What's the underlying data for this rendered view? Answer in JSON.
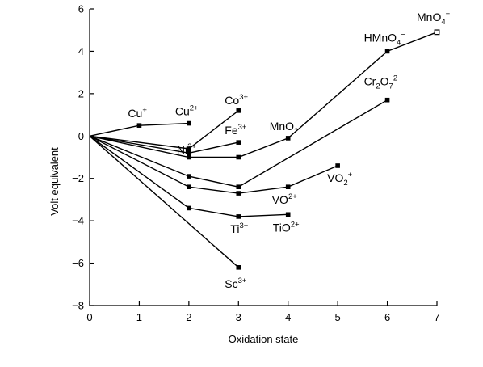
{
  "chart_data": {
    "type": "line",
    "xlabel": "Oxidation state",
    "ylabel": "Volt equivalent",
    "xlim": [
      0,
      7
    ],
    "ylim": [
      -8,
      6
    ],
    "x_ticks": [
      0,
      1,
      2,
      3,
      4,
      5,
      6,
      7
    ],
    "y_ticks": [
      -8,
      -6,
      -4,
      -2,
      0,
      2,
      4,
      6
    ],
    "series": [
      {
        "points": [
          [
            0,
            0
          ],
          [
            1,
            0.5
          ],
          [
            2,
            0.6
          ]
        ]
      },
      {
        "points": [
          [
            0,
            0
          ],
          [
            2,
            -0.6
          ],
          [
            3,
            1.2
          ]
        ]
      },
      {
        "points": [
          [
            0,
            0
          ],
          [
            2,
            -0.8
          ],
          [
            3,
            -0.3
          ]
        ]
      },
      {
        "points": [
          [
            0,
            0
          ],
          [
            2,
            -1.0
          ],
          [
            3,
            -1.0
          ],
          [
            4,
            -0.1
          ],
          [
            6,
            4.0
          ],
          [
            7,
            4.9
          ]
        ]
      },
      {
        "points": [
          [
            0,
            0
          ],
          [
            2,
            -1.9
          ],
          [
            3,
            -2.4
          ],
          [
            6,
            1.7
          ]
        ]
      },
      {
        "points": [
          [
            0,
            0
          ],
          [
            2,
            -2.4
          ],
          [
            3,
            -2.7
          ],
          [
            4,
            -2.4
          ],
          [
            5,
            -1.4
          ]
        ]
      },
      {
        "points": [
          [
            0,
            0
          ],
          [
            2,
            -3.4
          ],
          [
            3,
            -3.8
          ],
          [
            4,
            -3.7
          ]
        ]
      },
      {
        "points": [
          [
            0,
            0
          ],
          [
            3,
            -6.2
          ]
        ]
      }
    ],
    "open_markers": [
      [
        7,
        4.9
      ]
    ],
    "annotations": [
      {
        "base": "Cu",
        "sup": "+",
        "sub": "",
        "x": 1,
        "y": 0.5
      },
      {
        "base": "Cu",
        "sup": "2+",
        "sub": "",
        "x": 2,
        "y": 0.6
      },
      {
        "base": "Co",
        "sup": "3+",
        "sub": "",
        "x": 3,
        "y": 1.2
      },
      {
        "base": "Ni",
        "sup": "2+",
        "sub": "",
        "x": 2,
        "y": -0.6
      },
      {
        "base": "Fe",
        "sup": "3+",
        "sub": "",
        "x": 3,
        "y": -0.3
      },
      {
        "base": "MnO",
        "sup": "",
        "sub": "2",
        "x": 4,
        "y": -0.1
      },
      {
        "base": "HMnO",
        "sup": "−",
        "sub": "4",
        "x": 6,
        "y": 4.0
      },
      {
        "base": "MnO",
        "sup": "−",
        "sub": "4",
        "x": 7,
        "y": 4.9
      },
      {
        "base": "Cr",
        "sup": "2−",
        "sub": "2",
        "mid": "O",
        "sub2": "7",
        "x": 6,
        "y": 1.7
      },
      {
        "base": "VO",
        "sup": "+",
        "sub": "2",
        "x": 5,
        "y": -1.4
      },
      {
        "base": "VO",
        "sup": "2+",
        "sub": "",
        "x": 4,
        "y": -2.4
      },
      {
        "base": "Ti",
        "sup": "3+",
        "sub": "",
        "x": 3,
        "y": -3.8
      },
      {
        "base": "TiO",
        "sup": "2+",
        "sub": "",
        "x": 4,
        "y": -3.7
      },
      {
        "base": "Sc",
        "sup": "3+",
        "sub": "",
        "x": 3,
        "y": -6.2
      }
    ]
  }
}
